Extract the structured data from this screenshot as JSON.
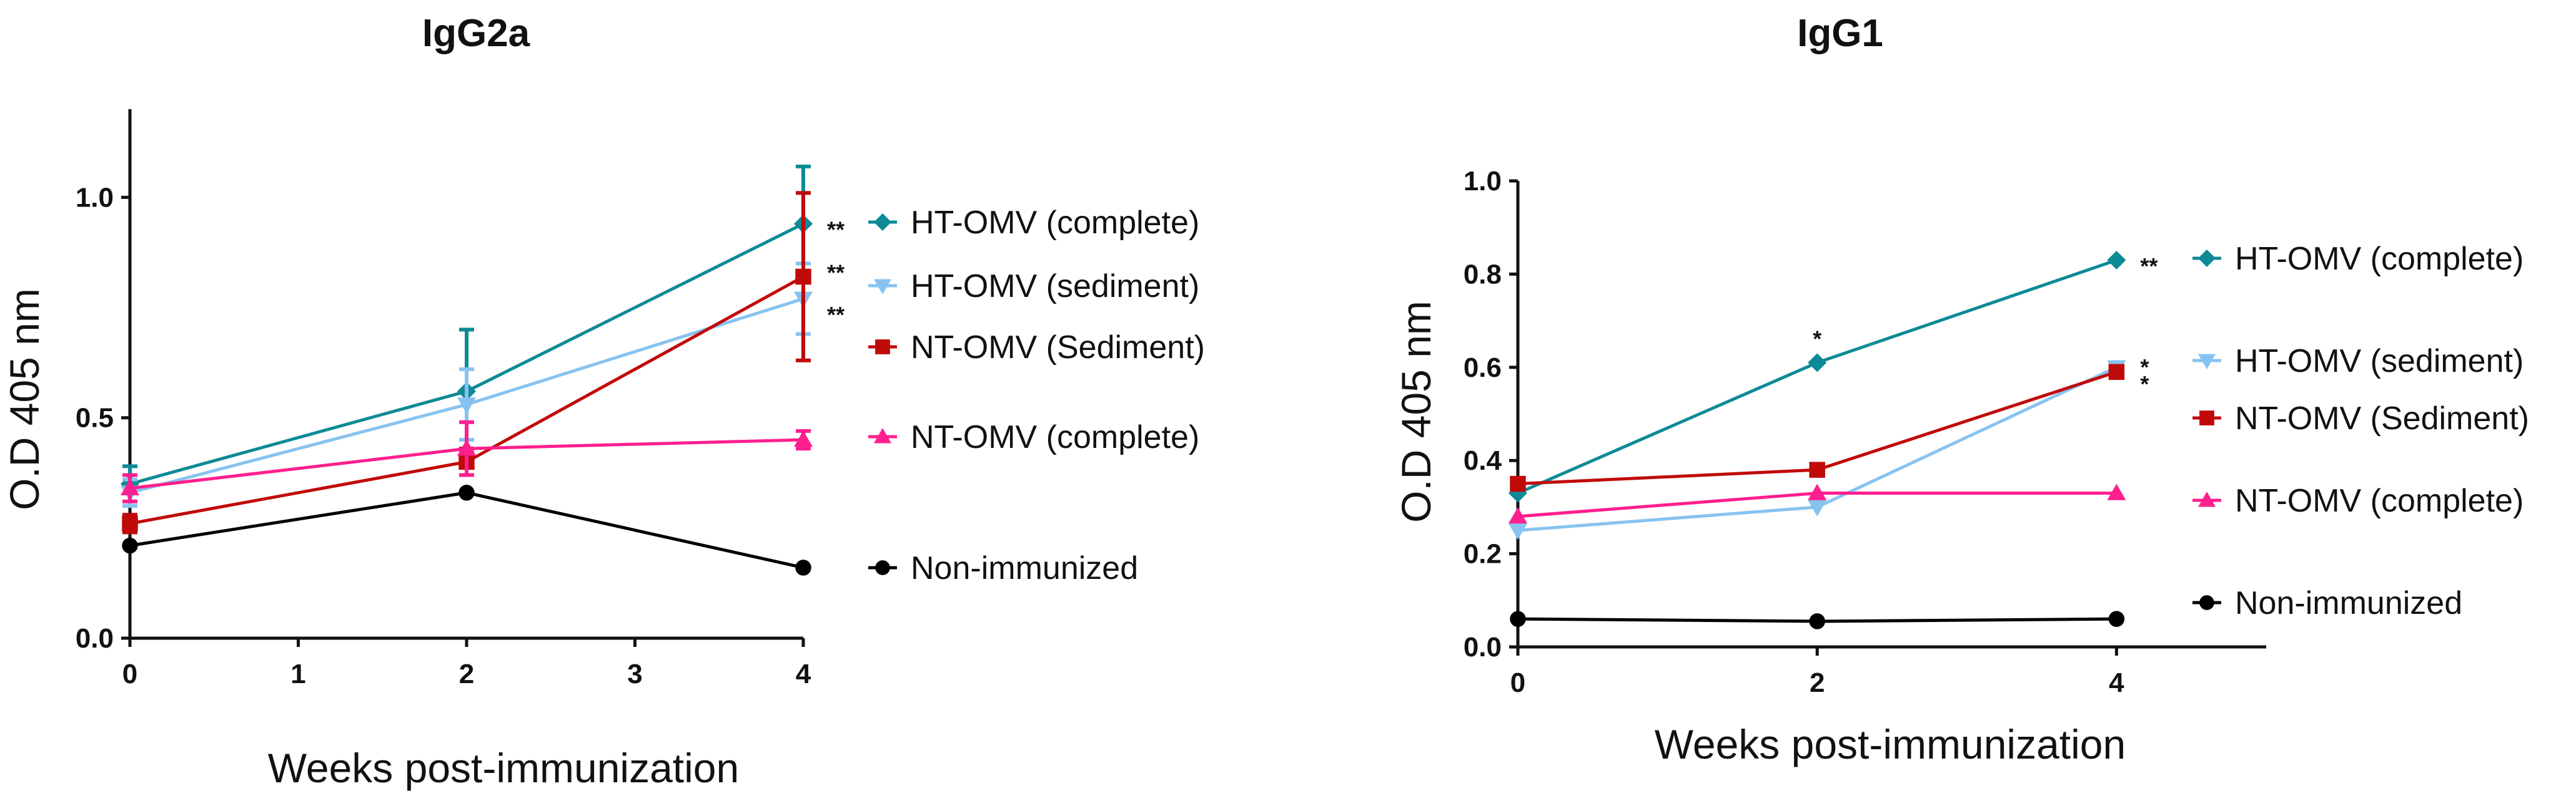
{
  "chart_data": [
    {
      "type": "line",
      "title": "IgG2a",
      "xlabel": "Weeks post-immunization",
      "ylabel": "O.D 405 nm",
      "xlim": [
        0,
        4
      ],
      "ylim": [
        0,
        1.2
      ],
      "xticks": [
        "0",
        "1",
        "2",
        "3",
        "4"
      ],
      "yticks": [
        "0.0",
        "0.5",
        "1.0"
      ],
      "xtick_values": [
        0,
        1,
        2,
        3,
        4
      ],
      "ytick_values": [
        0,
        0.5,
        1.0
      ],
      "series": [
        {
          "name": "HT-OMV (complete)",
          "color": "#0d8a96",
          "marker": "diamond",
          "x": [
            0,
            2,
            4
          ],
          "values": [
            0.35,
            0.56,
            0.94
          ],
          "errors": [
            0.04,
            0.14,
            0.13
          ],
          "star": "**",
          "star_offset": 0
        },
        {
          "name": "HT-OMV (sediment)",
          "color": "#87c3f0",
          "marker": "tri-down",
          "x": [
            0,
            2,
            4
          ],
          "values": [
            0.33,
            0.53,
            0.77
          ],
          "errors": [
            0.03,
            0.08,
            0.08
          ],
          "star": "**",
          "star_offset": 1
        },
        {
          "name": "NT-OMV (Sediment)",
          "color": "#c00a0a",
          "marker": "square",
          "x": [
            0,
            2,
            4
          ],
          "values": [
            0.26,
            0.4,
            0.82
          ],
          "errors": [
            0.02,
            0.03,
            0.19
          ],
          "star": "**",
          "star_offset": -1
        },
        {
          "name": "NT-OMV (complete)",
          "color": "#ff1f8e",
          "marker": "tri-up",
          "x": [
            0,
            2,
            4
          ],
          "values": [
            0.34,
            0.43,
            0.45
          ],
          "errors": [
            0.03,
            0.06,
            0.02
          ],
          "star": "",
          "star_offset": 0
        },
        {
          "name": "Non-immunized",
          "color": "#000000",
          "marker": "circle",
          "x": [
            0,
            2,
            4
          ],
          "values": [
            0.21,
            0.33,
            0.16
          ],
          "errors": [
            0,
            0,
            0
          ],
          "star": "",
          "star_offset": 0
        }
      ]
    },
    {
      "type": "line",
      "title": "IgG1",
      "xlabel": "Weeks post-immunization",
      "ylabel": "O.D 405 nm",
      "xlim": [
        0,
        5
      ],
      "ylim": [
        0,
        1.0
      ],
      "xticks": [
        "0",
        "2",
        "4"
      ],
      "yticks": [
        "0.0",
        "0.2",
        "0.4",
        "0.6",
        "0.8",
        "1.0"
      ],
      "xtick_values": [
        0,
        2,
        4
      ],
      "ytick_values": [
        0,
        0.2,
        0.4,
        0.6,
        0.8,
        1.0
      ],
      "series": [
        {
          "name": "HT-OMV (complete)",
          "color": "#0d8a96",
          "marker": "diamond",
          "x": [
            0,
            2,
            4
          ],
          "values": [
            0.33,
            0.61,
            0.83
          ],
          "errors": [
            0,
            0,
            0
          ],
          "star": "**",
          "star_offset": 0,
          "mid_star": "*"
        },
        {
          "name": "HT-OMV (sediment)",
          "color": "#87c3f0",
          "marker": "tri-down",
          "x": [
            0,
            2,
            4
          ],
          "values": [
            0.25,
            0.3,
            0.6
          ],
          "errors": [
            0,
            0,
            0
          ],
          "star": "*",
          "star_offset": -0.6
        },
        {
          "name": "NT-OMV (Sediment)",
          "color": "#c00a0a",
          "marker": "square",
          "x": [
            0,
            2,
            4
          ],
          "values": [
            0.35,
            0.38,
            0.59
          ],
          "errors": [
            0,
            0,
            0
          ],
          "star": "*",
          "star_offset": 0.6
        },
        {
          "name": "NT-OMV (complete)",
          "color": "#ff1f8e",
          "marker": "tri-up",
          "x": [
            0,
            2,
            4
          ],
          "values": [
            0.28,
            0.33,
            0.33
          ],
          "errors": [
            0,
            0,
            0
          ],
          "star": "",
          "star_offset": 0
        },
        {
          "name": "Non-immunized",
          "color": "#000000",
          "marker": "circle",
          "x": [
            0,
            2,
            4
          ],
          "values": [
            0.06,
            0.055,
            0.06
          ],
          "errors": [
            0,
            0,
            0
          ],
          "star": "",
          "star_offset": 0
        }
      ]
    }
  ]
}
